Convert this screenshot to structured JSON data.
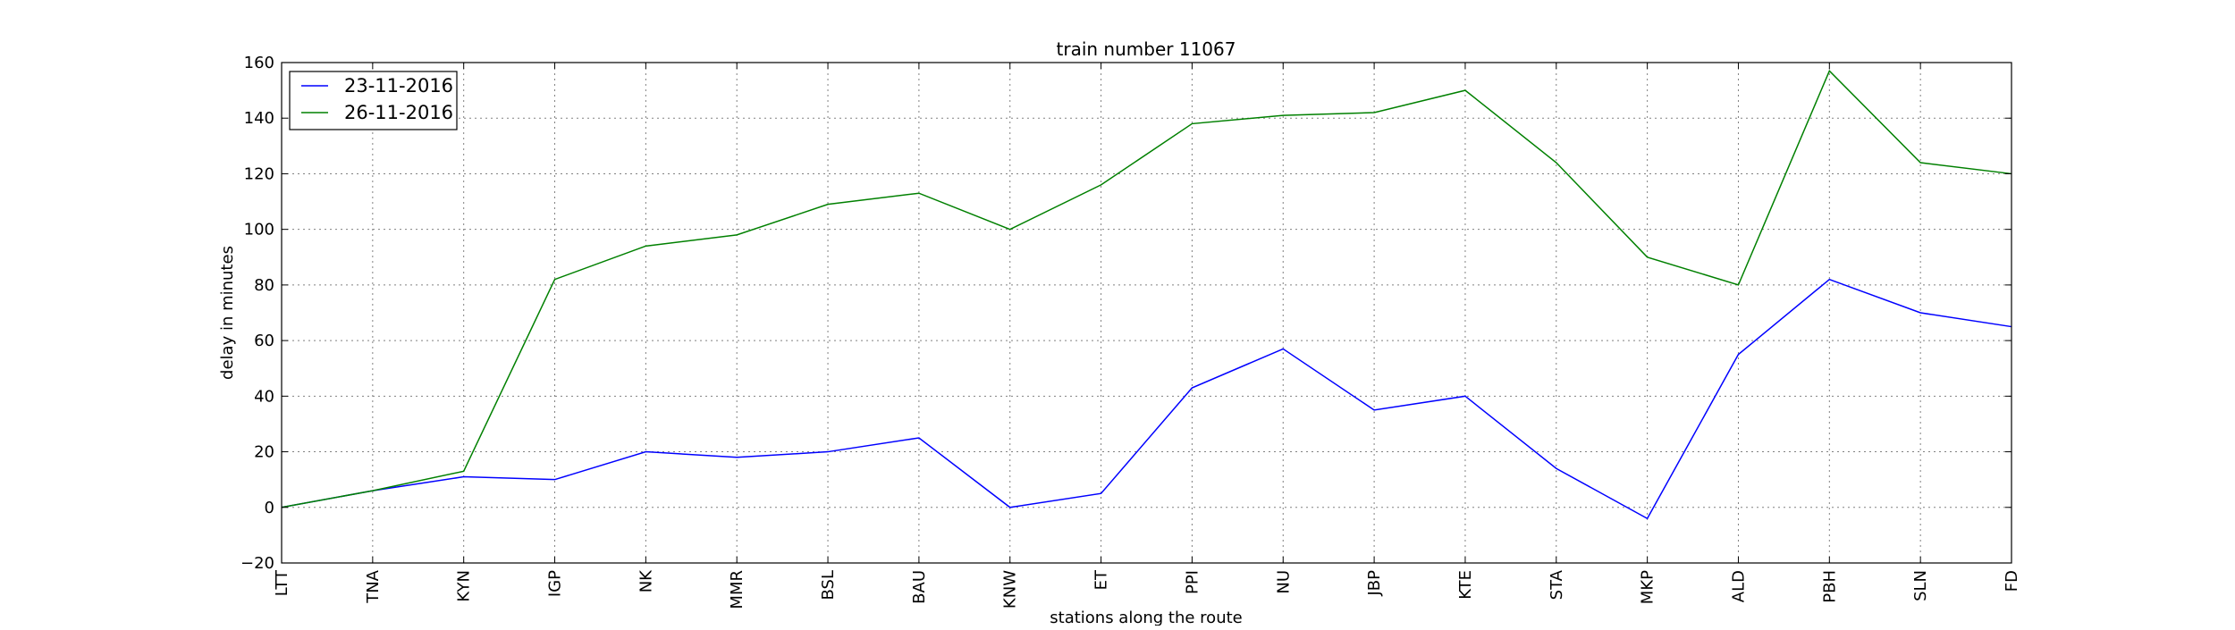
{
  "chart_data": {
    "type": "line",
    "title": "train number 11067",
    "xlabel": "stations along the route",
    "ylabel": "delay in minutes",
    "x_categories": [
      "LTT",
      "TNA",
      "KYN",
      "IGP",
      "NK",
      "MMR",
      "BSL",
      "BAU",
      "KNW",
      "ET",
      "PPI",
      "NU",
      "JBP",
      "KTE",
      "STA",
      "MKP",
      "ALD",
      "PBH",
      "SLN",
      "FD"
    ],
    "ylim": [
      -20,
      160
    ],
    "yticks": [
      -20,
      0,
      20,
      40,
      60,
      80,
      100,
      120,
      140,
      160
    ],
    "ytick_labels": [
      "−20",
      "0",
      "20",
      "40",
      "60",
      "80",
      "100",
      "120",
      "140",
      "160"
    ],
    "grid": true,
    "legend_position": "upper-left",
    "series": [
      {
        "name": "23-11-2016",
        "color": "#0000ff",
        "values": [
          0,
          6,
          11,
          10,
          20,
          18,
          20,
          25,
          0,
          5,
          43,
          57,
          35,
          40,
          14,
          -4,
          55,
          82,
          70,
          65
        ]
      },
      {
        "name": "26-11-2016",
        "color": "#008000",
        "values": [
          0,
          6,
          13,
          82,
          94,
          98,
          109,
          113,
          100,
          116,
          138,
          141,
          142,
          150,
          124,
          90,
          80,
          157,
          124,
          120
        ]
      }
    ]
  }
}
